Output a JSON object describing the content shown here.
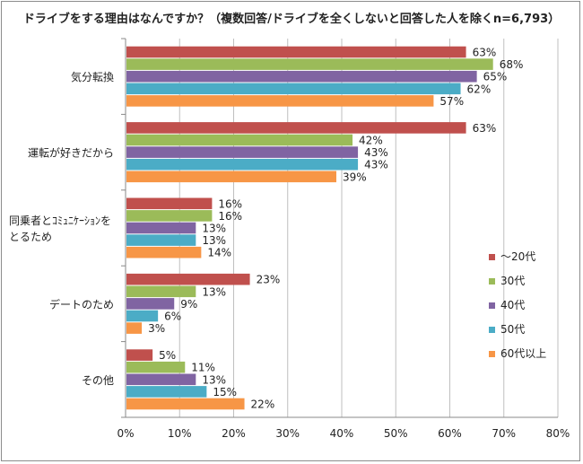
{
  "chart_data": {
    "type": "bar",
    "orientation": "horizontal",
    "title": "ドライブをする理由はなんですか？（複数回答/ドライブを全くしないと回答した人を除くn=6,793）",
    "categories": [
      [
        "気分転換"
      ],
      [
        "運転が好きだから"
      ],
      [
        "同乗者とｺﾐｭﾆｹｰｼｮﾝを",
        "とるため"
      ],
      [
        "デートのため"
      ],
      [
        "その他"
      ]
    ],
    "series": [
      {
        "name": "～20代",
        "color": "#c0504d",
        "values": [
          63,
          63,
          16,
          23,
          5
        ]
      },
      {
        "name": "30代",
        "color": "#9bbb59",
        "values": [
          68,
          42,
          16,
          13,
          11
        ]
      },
      {
        "name": "40代",
        "color": "#8064a2",
        "values": [
          65,
          43,
          13,
          9,
          13
        ]
      },
      {
        "name": "50代",
        "color": "#4bacc6",
        "values": [
          62,
          43,
          13,
          6,
          15
        ]
      },
      {
        "name": "60代以上",
        "color": "#f79646",
        "values": [
          57,
          39,
          14,
          3,
          22
        ]
      }
    ],
    "xlim": [
      0,
      80
    ],
    "xticks": [
      "0%",
      "10%",
      "20%",
      "30%",
      "40%",
      "50%",
      "60%",
      "70%",
      "80%"
    ],
    "value_suffix": "%",
    "grid": true,
    "legend_position": "right"
  }
}
